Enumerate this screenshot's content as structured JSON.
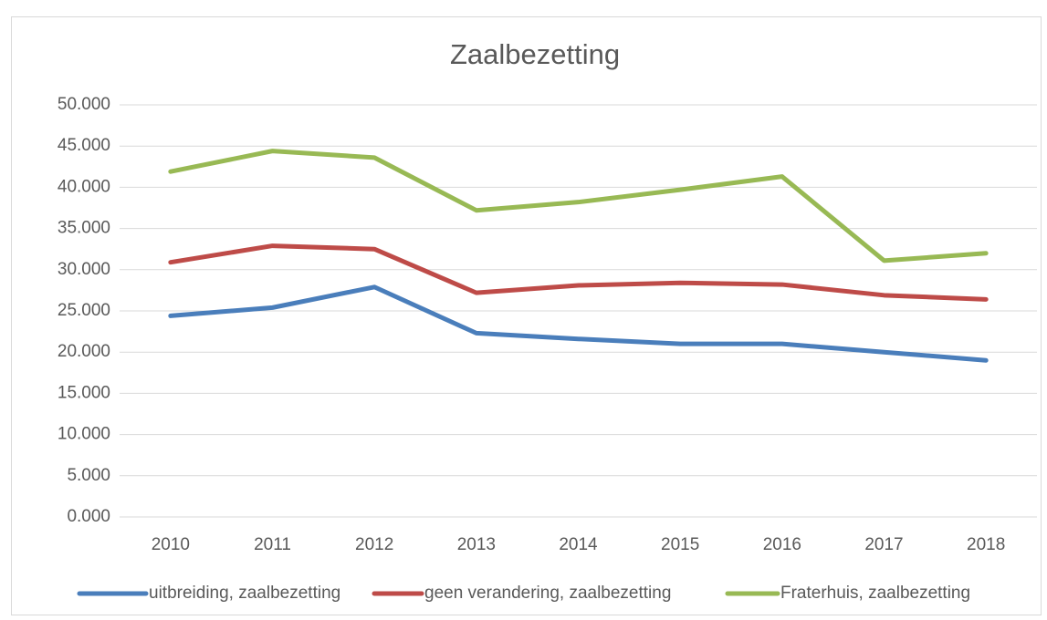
{
  "chart_data": {
    "type": "line",
    "title": "Zaalbezetting",
    "categories": [
      "2010",
      "2011",
      "2012",
      "2013",
      "2014",
      "2015",
      "2016",
      "2017",
      "2018"
    ],
    "series": [
      {
        "name": "uitbreiding, zaalbezetting",
        "color": "#4a7ebb",
        "values": [
          24400,
          25400,
          27900,
          22300,
          21600,
          21000,
          21000,
          20000,
          19000
        ]
      },
      {
        "name": "geen verandering, zaalbezetting",
        "color": "#be4b48",
        "values": [
          30900,
          32900,
          32500,
          27200,
          28100,
          28400,
          28200,
          26900,
          26400
        ]
      },
      {
        "name": "Fraterhuis, zaalbezetting",
        "color": "#98b954",
        "values": [
          41900,
          44400,
          43600,
          37200,
          38200,
          39700,
          41300,
          31100,
          32000
        ]
      }
    ],
    "ylim": [
      0,
      50000
    ],
    "yticks": [
      {
        "value": 0,
        "label": "0.000"
      },
      {
        "value": 5000,
        "label": "5.000"
      },
      {
        "value": 10000,
        "label": "10.000"
      },
      {
        "value": 15000,
        "label": "15.000"
      },
      {
        "value": 20000,
        "label": "20.000"
      },
      {
        "value": 25000,
        "label": "25.000"
      },
      {
        "value": 30000,
        "label": "30.000"
      },
      {
        "value": 35000,
        "label": "35.000"
      },
      {
        "value": 40000,
        "label": "40.000"
      },
      {
        "value": 45000,
        "label": "45.000"
      },
      {
        "value": 50000,
        "label": "50.000"
      }
    ],
    "grid": true,
    "legend": "bottom"
  }
}
